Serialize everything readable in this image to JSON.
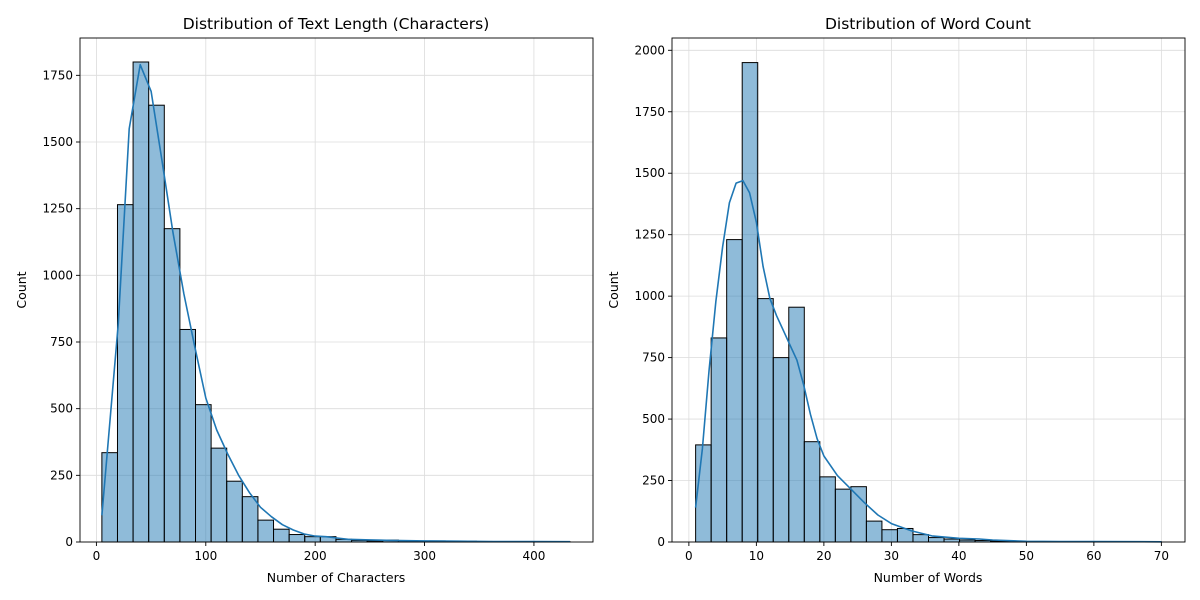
{
  "chart_data": [
    {
      "type": "bar",
      "title": "Distribution of Text Length (Characters)",
      "xlabel": "Number of Characters",
      "ylabel": "Count",
      "xlim": [
        -15,
        454
      ],
      "ylim": [
        0,
        1890
      ],
      "xticks": [
        0,
        100,
        200,
        300,
        400
      ],
      "yticks": [
        0,
        250,
        500,
        750,
        1000,
        1250,
        1500,
        1750
      ],
      "grid": true,
      "bin_edges": [
        5,
        19.27,
        33.53,
        47.8,
        62.07,
        76.33,
        90.6,
        104.87,
        119.13,
        133.4,
        147.67,
        161.93,
        176.2,
        190.47,
        204.73,
        219,
        233.27,
        247.53,
        261.8,
        276.07,
        290.33,
        304.6,
        318.87,
        333.13,
        347.4,
        361.67,
        375.93,
        390.2,
        404.47,
        418.73,
        433
      ],
      "values": [
        335,
        1265,
        1800,
        1638,
        1175,
        797,
        515,
        352,
        228,
        170,
        82,
        48,
        28,
        20,
        20,
        10,
        6,
        4,
        7,
        5,
        3,
        4,
        2,
        3,
        2,
        1,
        1,
        1,
        1,
        1
      ],
      "kde": {
        "x": [
          5,
          20,
          30,
          40,
          50,
          60,
          70,
          80,
          90,
          100,
          110,
          120,
          130,
          140,
          150,
          160,
          170,
          180,
          190,
          200,
          210,
          220,
          230,
          250,
          270,
          300,
          330,
          360,
          400,
          433
        ],
        "y": [
          100,
          820,
          1550,
          1790,
          1690,
          1430,
          1160,
          930,
          730,
          540,
          420,
          330,
          250,
          185,
          130,
          95,
          65,
          45,
          30,
          22,
          20,
          15,
          10,
          8,
          6,
          4,
          3,
          2,
          2,
          1
        ]
      },
      "bar_color": "#1f77b4"
    },
    {
      "type": "bar",
      "title": "Distribution of Word Count",
      "xlabel": "Number of Words",
      "ylabel": "Count",
      "xlim": [
        -2.5,
        73.5
      ],
      "ylim": [
        0,
        2050
      ],
      "xticks": [
        0,
        10,
        20,
        30,
        40,
        50,
        60,
        70
      ],
      "yticks": [
        0,
        250,
        500,
        750,
        1000,
        1250,
        1500,
        1750,
        2000
      ],
      "grid": true,
      "bin_edges": [
        1,
        3.3,
        5.6,
        7.9,
        10.2,
        12.5,
        14.8,
        17.1,
        19.4,
        21.7,
        24,
        26.3,
        28.6,
        30.9,
        33.2,
        35.5,
        37.8,
        40.1,
        42.4,
        44.7,
        47,
        49.3,
        51.6,
        53.9,
        56.2,
        58.5,
        60.8,
        63.1,
        65.4,
        67.7,
        70
      ],
      "values": [
        395,
        830,
        1230,
        1950,
        990,
        750,
        955,
        408,
        265,
        215,
        225,
        85,
        50,
        55,
        30,
        18,
        12,
        8,
        6,
        4,
        3,
        2,
        2,
        1,
        1,
        1,
        1,
        1,
        1,
        1
      ],
      "kde": {
        "x": [
          1,
          2,
          3,
          4,
          5,
          6,
          7,
          8,
          9,
          10,
          11,
          12,
          13,
          14,
          15,
          16,
          17,
          18,
          19,
          20,
          22,
          24,
          26,
          28,
          30,
          33,
          36,
          40,
          43,
          45,
          50,
          55,
          60,
          70
        ],
        "y": [
          140,
          380,
          700,
          980,
          1200,
          1380,
          1460,
          1470,
          1420,
          1300,
          1120,
          990,
          920,
          860,
          800,
          740,
          640,
          520,
          420,
          350,
          270,
          215,
          160,
          110,
          75,
          45,
          25,
          15,
          12,
          8,
          3,
          2,
          2,
          1
        ]
      },
      "bar_color": "#1f77b4"
    }
  ]
}
